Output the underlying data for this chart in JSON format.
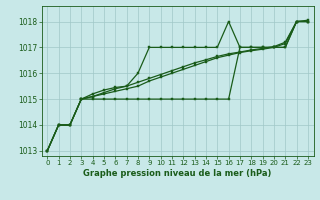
{
  "background_color": "#c8e8e8",
  "grid_color": "#a0c8c8",
  "line_color": "#1a5c1a",
  "title": "Graphe pression niveau de la mer (hPa)",
  "xlim": [
    -0.5,
    23.5
  ],
  "ylim": [
    1012.8,
    1018.6
  ],
  "yticks": [
    1013,
    1014,
    1015,
    1016,
    1017,
    1018
  ],
  "xticks": [
    0,
    1,
    2,
    3,
    4,
    5,
    6,
    7,
    8,
    9,
    10,
    11,
    12,
    13,
    14,
    15,
    16,
    17,
    18,
    19,
    20,
    21,
    22,
    23
  ],
  "series": [
    [
      1013.0,
      1014.0,
      1014.0,
      1015.0,
      1015.0,
      1015.0,
      1015.0,
      1015.0,
      1015.0,
      1015.0,
      1015.0,
      1015.0,
      1015.0,
      1015.0,
      1015.0,
      1015.0,
      1015.0,
      1017.0,
      1017.0,
      1017.0,
      1017.0,
      1017.0,
      1018.0,
      1018.0
    ],
    [
      1013.0,
      1014.0,
      1014.0,
      1015.0,
      1015.1,
      1015.2,
      1015.3,
      1015.4,
      1015.5,
      1015.7,
      1015.85,
      1016.0,
      1016.15,
      1016.3,
      1016.45,
      1016.6,
      1016.7,
      1016.8,
      1016.87,
      1016.93,
      1017.0,
      1017.15,
      1018.0,
      1018.0
    ],
    [
      1013.0,
      1014.0,
      1014.0,
      1015.0,
      1015.2,
      1015.35,
      1015.45,
      1015.5,
      1016.0,
      1017.0,
      1017.0,
      1017.0,
      1017.0,
      1017.0,
      1017.0,
      1017.0,
      1018.0,
      1017.0,
      1017.0,
      1017.0,
      1017.0,
      1017.0,
      1018.0,
      1018.0
    ],
    [
      1013.0,
      1014.0,
      1014.0,
      1015.0,
      1015.1,
      1015.25,
      1015.4,
      1015.5,
      1015.65,
      1015.8,
      1015.95,
      1016.1,
      1016.25,
      1016.4,
      1016.52,
      1016.65,
      1016.75,
      1016.82,
      1016.9,
      1016.96,
      1017.03,
      1017.2,
      1018.0,
      1018.05
    ]
  ]
}
